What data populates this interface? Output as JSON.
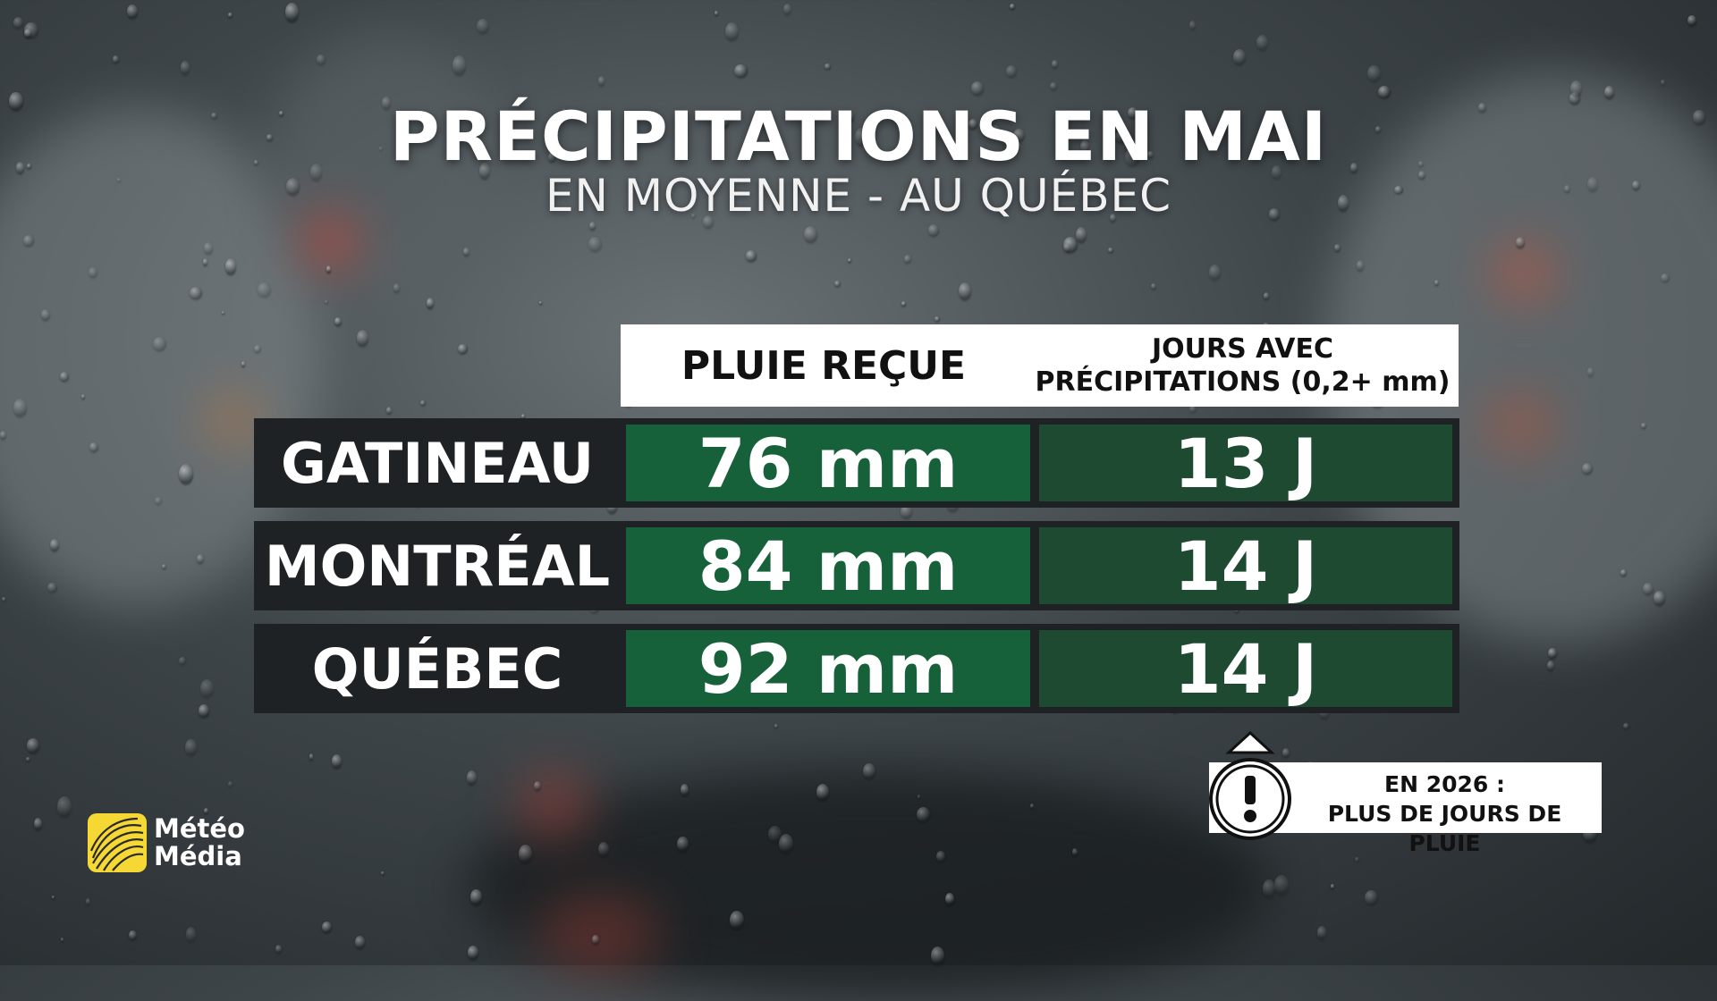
{
  "title": "PRÉCIPITATIONS EN MAI",
  "subtitle": "EN MOYENNE - AU QUÉBEC",
  "table": {
    "header_rain": "PLUIE REÇUE",
    "header_days_line1": "JOURS AVEC",
    "header_days_line2": "PRÉCIPITATIONS (0,2+ mm)",
    "rows": [
      {
        "city": "GATINEAU",
        "rain": "76 mm",
        "days": "13 J"
      },
      {
        "city": "MONTRÉAL",
        "rain": "84 mm",
        "days": "14 J"
      },
      {
        "city": "QUÉBEC",
        "rain": "92 mm",
        "days": "14 J"
      }
    ]
  },
  "notice": {
    "line1": "EN 2026 :",
    "line2": "PLUS DE JOURS DE PLUIE",
    "icon": "exclamation-icon"
  },
  "logo": {
    "line1": "Météo",
    "line2": "Média",
    "icon": "globe-logo-icon",
    "color": "#f6d834"
  },
  "colors": {
    "rain_cell": "#17613a",
    "days_cell": "#1d4a31",
    "row_bg": "#1e2224"
  }
}
